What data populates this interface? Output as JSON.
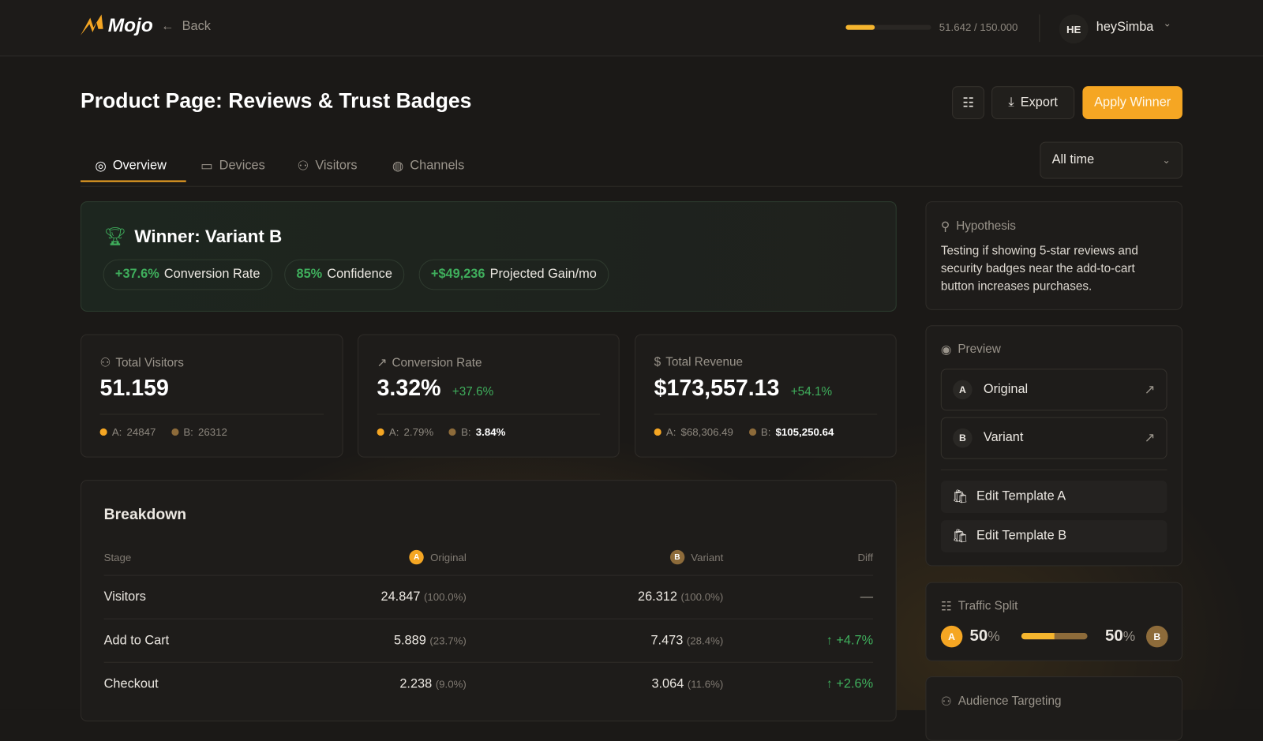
{
  "header": {
    "logo": "Mojo",
    "back_label": "Back",
    "usage": {
      "text": "51.642 / 150.000",
      "fraction": 0.344
    },
    "user": {
      "initials": "HE",
      "name": "heySimba"
    }
  },
  "page": {
    "title": "Product Page: Reviews & Trust Badges",
    "export_label": "Export",
    "apply_label": "Apply Winner",
    "accent": "#F5A623"
  },
  "tabs": [
    {
      "label": "Overview",
      "icon": "target-icon",
      "active": true
    },
    {
      "label": "Devices",
      "icon": "monitor-icon"
    },
    {
      "label": "Visitors",
      "icon": "users-icon"
    },
    {
      "label": "Channels",
      "icon": "globe-icon"
    }
  ],
  "time_filter": {
    "selected": "All time"
  },
  "winner": {
    "title": "Winner: Variant B",
    "chips": [
      {
        "value": "+37.6%",
        "label": "Conversion Rate"
      },
      {
        "value": "85%",
        "label": "Confidence"
      },
      {
        "value": "+$49,236",
        "label": "Projected Gain/mo"
      }
    ]
  },
  "stats": [
    {
      "label": "Total Visitors",
      "value": "51.159",
      "delta": "",
      "a_label": "A:",
      "a": "24847",
      "b_label": "B:",
      "b": "26312"
    },
    {
      "label": "Conversion Rate",
      "value": "3.32%",
      "delta": "+37.6%",
      "a_label": "A:",
      "a": "2.79%",
      "b_label": "B:",
      "b": "3.84%"
    },
    {
      "label": "Total Revenue",
      "value": "$173,557.13",
      "delta": "+54.1%",
      "a_label": "A:",
      "a": "$68,306.49",
      "b_label": "B:",
      "b": "$105,250.64"
    }
  ],
  "breakdown": {
    "title": "Breakdown",
    "headers": {
      "stage": "Stage",
      "a_badge": "A",
      "original": "Original",
      "b_badge": "B",
      "variant": "Variant",
      "diff": "Diff"
    },
    "rows": [
      {
        "stage": "Visitors",
        "a": "24.847",
        "a_pct": "(100.0%)",
        "b": "26.312",
        "b_pct": "(100.0%)",
        "diff": "—"
      },
      {
        "stage": "Add to Cart",
        "a": "5.889",
        "a_pct": "(23.7%)",
        "b": "7.473",
        "b_pct": "(28.4%)",
        "diff": "↑ +4.7%"
      },
      {
        "stage": "Checkout",
        "a": "2.238",
        "a_pct": "(9.0%)",
        "b": "3.064",
        "b_pct": "(11.6%)",
        "diff": "↑ +2.6%"
      }
    ]
  },
  "hypothesis": {
    "title": "Hypothesis",
    "text": "Testing if showing 5-star reviews and security badges near the add-to-cart button increases purchases."
  },
  "preview": {
    "title": "Preview",
    "items": [
      {
        "badge": "A",
        "label": "Original"
      },
      {
        "badge": "B",
        "label": "Variant"
      }
    ],
    "edit_a": "Edit Template A",
    "edit_b": "Edit Template B"
  },
  "traffic": {
    "title": "Traffic Split",
    "a_badge": "A",
    "a_value": "50",
    "b_badge": "B",
    "b_value": "50",
    "unit": "%",
    "a_fraction": 0.5
  },
  "audience": {
    "title": "Audience Targeting"
  }
}
